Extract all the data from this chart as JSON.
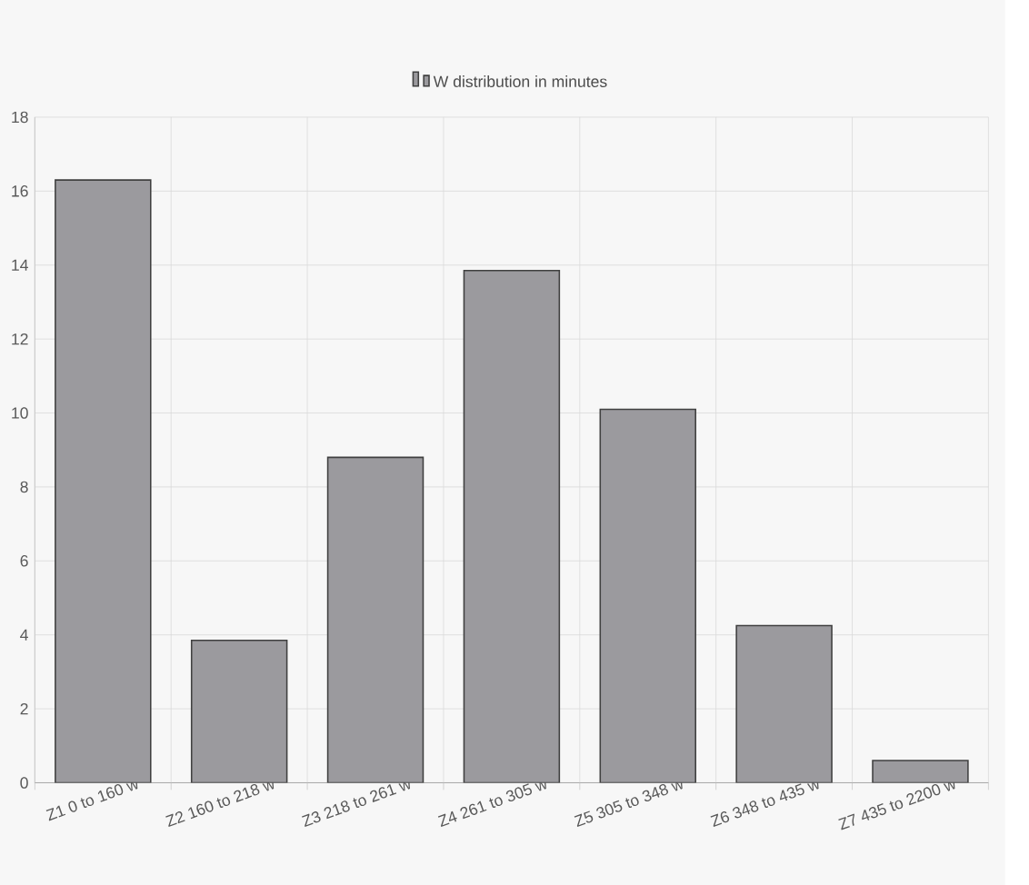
{
  "chart_data": {
    "type": "bar",
    "categories": [
      "Z1 0 to 160 w",
      "Z2 160 to 218 w",
      "Z3 218 to 261 w",
      "Z4 261 to 305 w",
      "Z5 305 to 348 w",
      "Z6 348 to 435 w",
      "Z7 435 to 2200 w"
    ],
    "series": [
      {
        "name": "W distribution in minutes",
        "color": "#9b9a9e",
        "values": [
          16.3,
          3.85,
          8.8,
          13.85,
          10.1,
          4.25,
          0.6
        ]
      }
    ],
    "ylim": [
      0,
      18
    ],
    "yticks": [
      0,
      2,
      4,
      6,
      8,
      10,
      12,
      14,
      16,
      18
    ],
    "grid": true,
    "legend": "top"
  }
}
